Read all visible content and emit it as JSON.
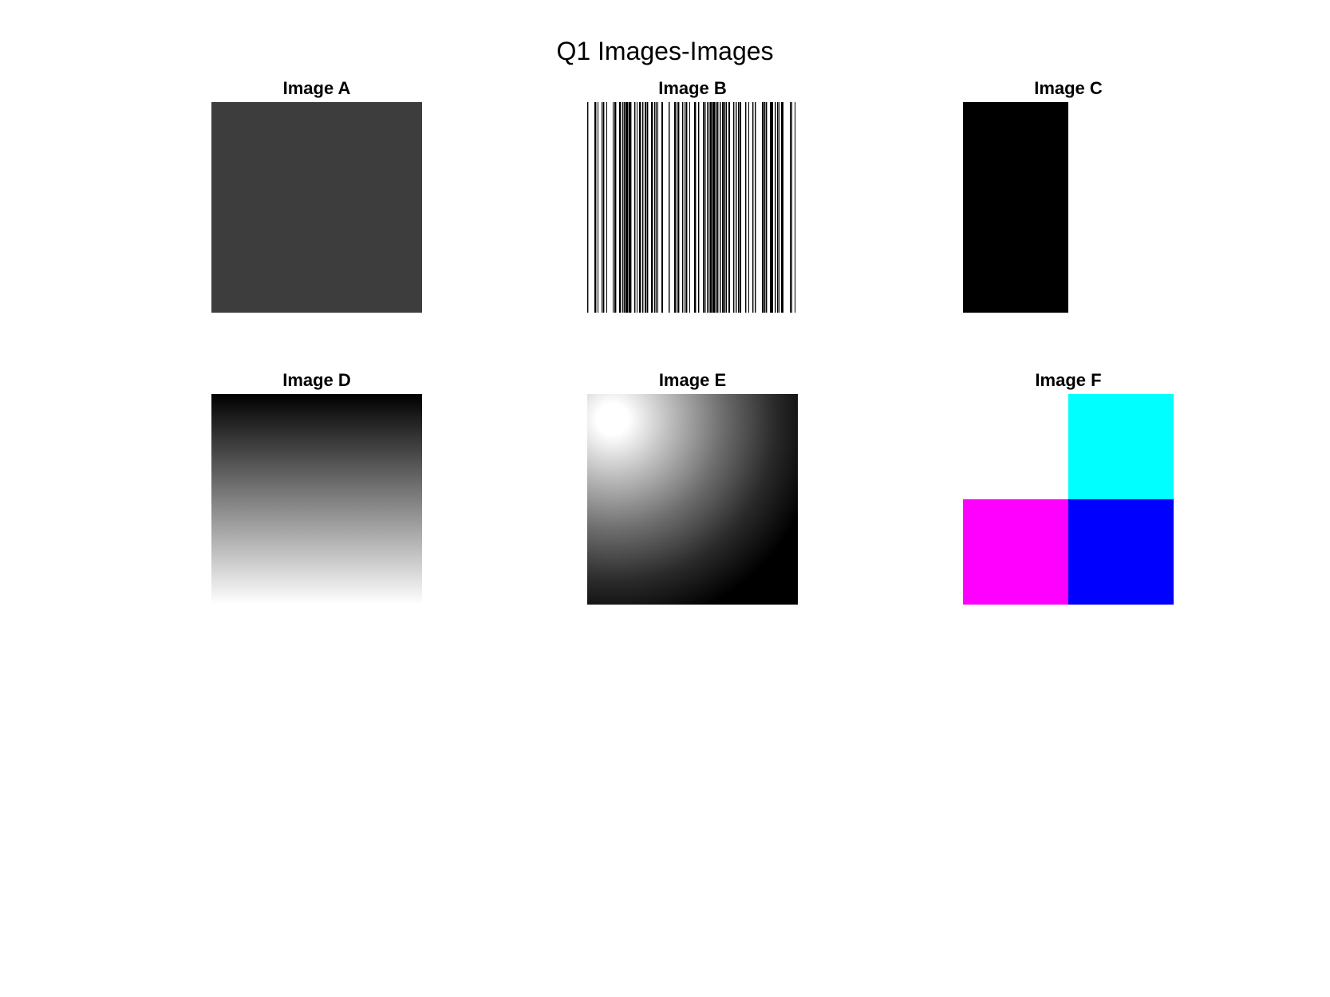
{
  "figure": {
    "title": "Q1 Images-Images"
  },
  "panels": [
    {
      "id": "a",
      "title": "Image A",
      "fill": "#3d3d3d"
    },
    {
      "id": "b",
      "title": "Image B",
      "stripe_dark": "#000000",
      "stripe_light": "#ffffff"
    },
    {
      "id": "c",
      "title": "Image C",
      "left_color": "#000000",
      "right_color": "#ffffff"
    },
    {
      "id": "d",
      "title": "Image D",
      "top_color": "#000000",
      "bottom_color": "#ffffff"
    },
    {
      "id": "e",
      "title": "Image E",
      "center_color": "#ffffff",
      "outer_color": "#000000"
    },
    {
      "id": "f",
      "title": "Image F",
      "quadrants": {
        "top_left": "#ffffff",
        "top_right": "#00ffff",
        "bottom_left": "#ff00ff",
        "bottom_right": "#0000ff"
      }
    }
  ]
}
